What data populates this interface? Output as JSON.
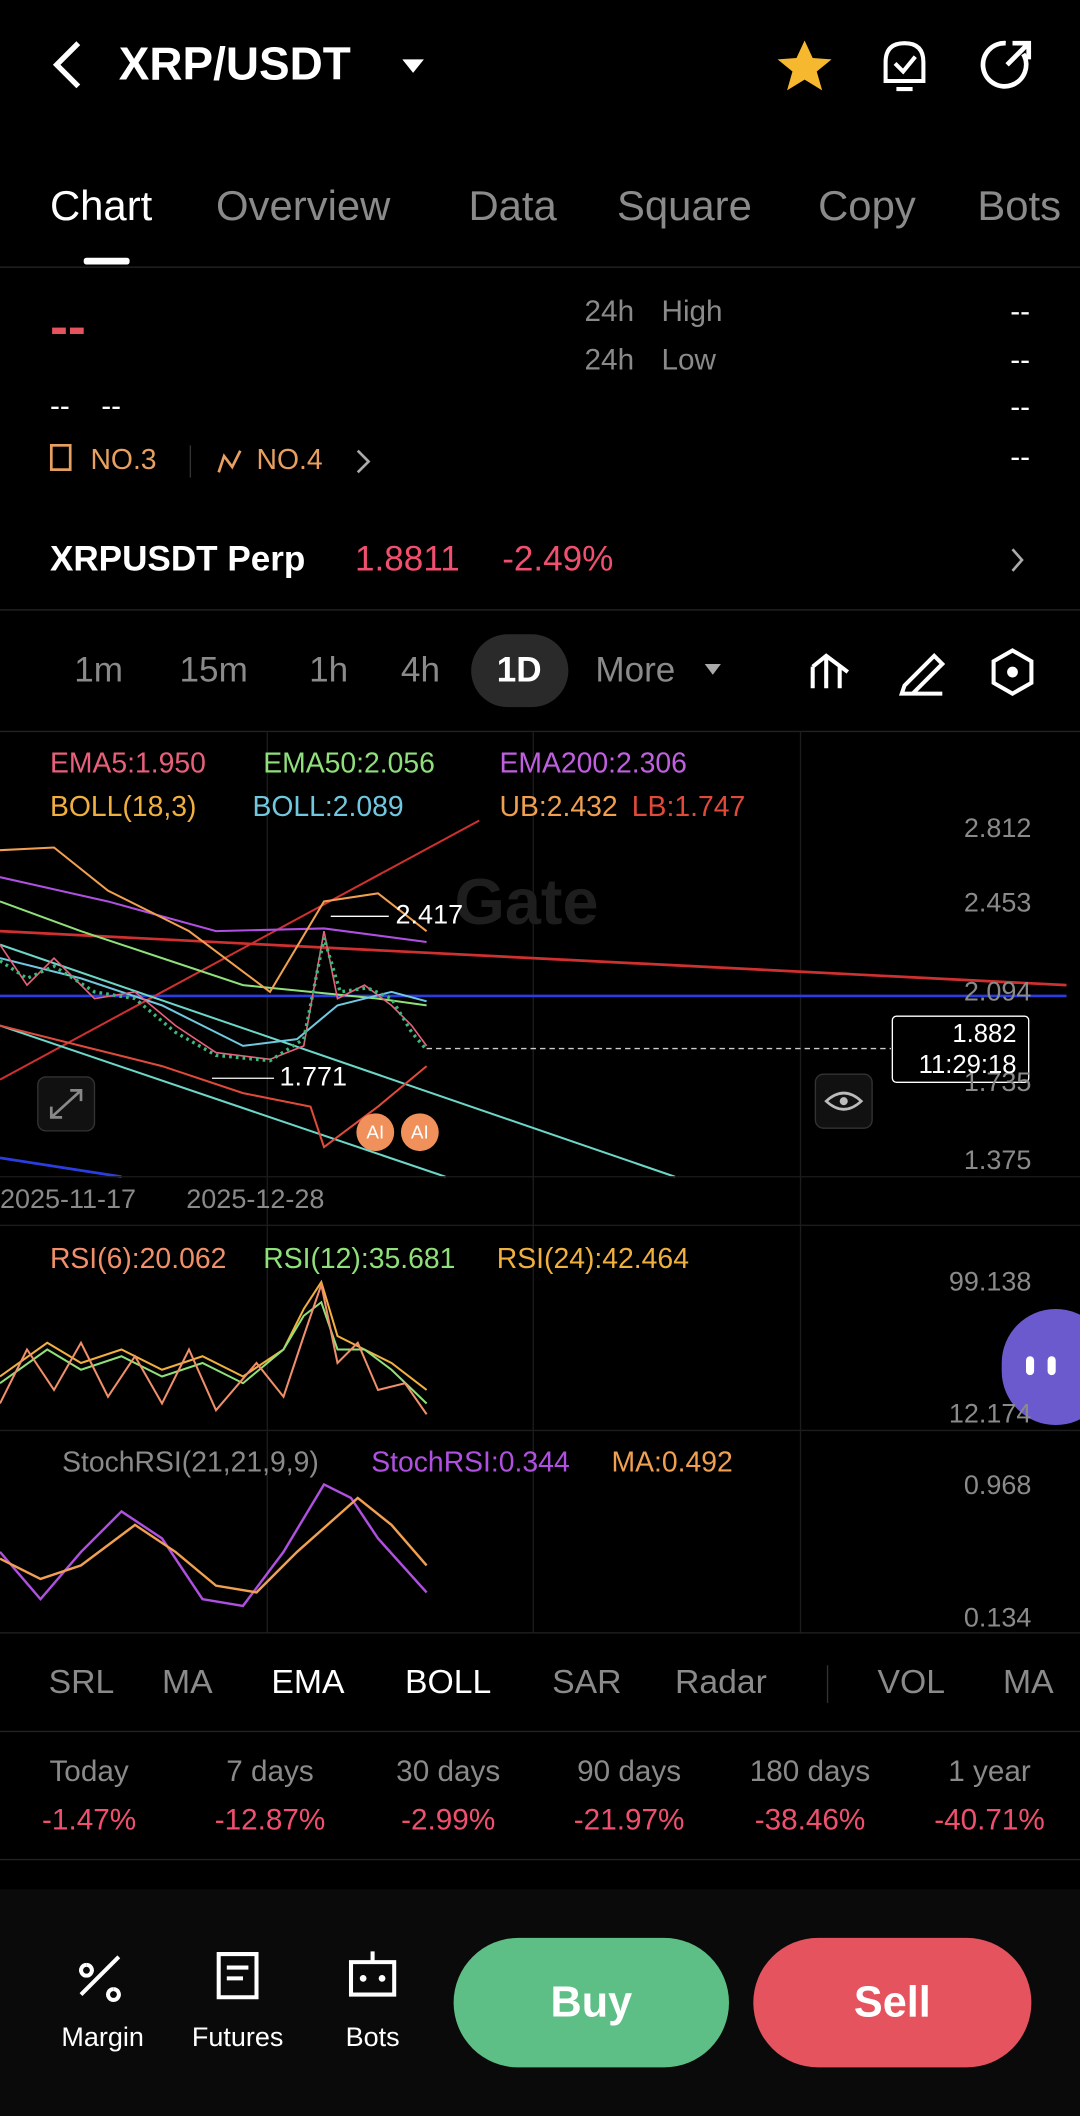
{
  "header": {
    "title": "XRP/USDT"
  },
  "tabs": [
    "Chart",
    "Overview",
    "Data",
    "Square",
    "Copy",
    "Bots"
  ],
  "stats": {
    "price": "--",
    "sub": [
      "--",
      "--"
    ],
    "high": [
      "24h",
      "High"
    ],
    "low": [
      "24h",
      "Low"
    ],
    "values": [
      "--",
      "--",
      "--",
      "--"
    ],
    "ranks": [
      "NO.3",
      "NO.4"
    ]
  },
  "perp": {
    "name": "XRPUSDT Perp",
    "price": "1.8811",
    "change": "-2.49%"
  },
  "intervals": [
    "1m",
    "15m",
    "1h",
    "4h",
    "1D",
    "More"
  ],
  "ema": [
    "EMA5:1.950",
    "EMA50:2.056",
    "EMA200:2.306"
  ],
  "boll": [
    "BOLL(18,3)",
    "BOLL:2.089",
    "UB:2.432",
    "LB:1.747"
  ],
  "price_axis": [
    "2.812",
    "2.453",
    "2.094",
    "1.735",
    "1.375"
  ],
  "annotations": {
    "high": "2.417",
    "low": "1.771",
    "current": "1.882",
    "countdown": "11:29:18",
    "ai": [
      "AI",
      "AI"
    ]
  },
  "dates": [
    "2025-11-17",
    "2025-12-28"
  ],
  "rsi": {
    "labels": [
      "RSI(6):20.062",
      "RSI(12):35.681",
      "RSI(24):42.464"
    ],
    "axis": [
      "99.138",
      "12.174"
    ]
  },
  "stoch": {
    "labels": [
      "StochRSI(21,21,9,9)",
      "StochRSI:0.344",
      "MA:0.492"
    ],
    "axis": [
      "0.968",
      "0.134"
    ]
  },
  "indicator_tabs": [
    "SRL",
    "MA",
    "EMA",
    "BOLL",
    "SAR",
    "Radar",
    "VOL",
    "MA"
  ],
  "performance": [
    {
      "period": "Today",
      "change": "-1.47%"
    },
    {
      "period": "7 days",
      "change": "-12.87%"
    },
    {
      "period": "30 days",
      "change": "-2.99%"
    },
    {
      "period": "90 days",
      "change": "-21.97%"
    },
    {
      "period": "180 days",
      "change": "-38.46%"
    },
    {
      "period": "1 year",
      "change": "-40.71%"
    }
  ],
  "bottom_nav": [
    "Margin",
    "Futures",
    "Bots"
  ],
  "actions": [
    "Buy",
    "Sell"
  ]
}
